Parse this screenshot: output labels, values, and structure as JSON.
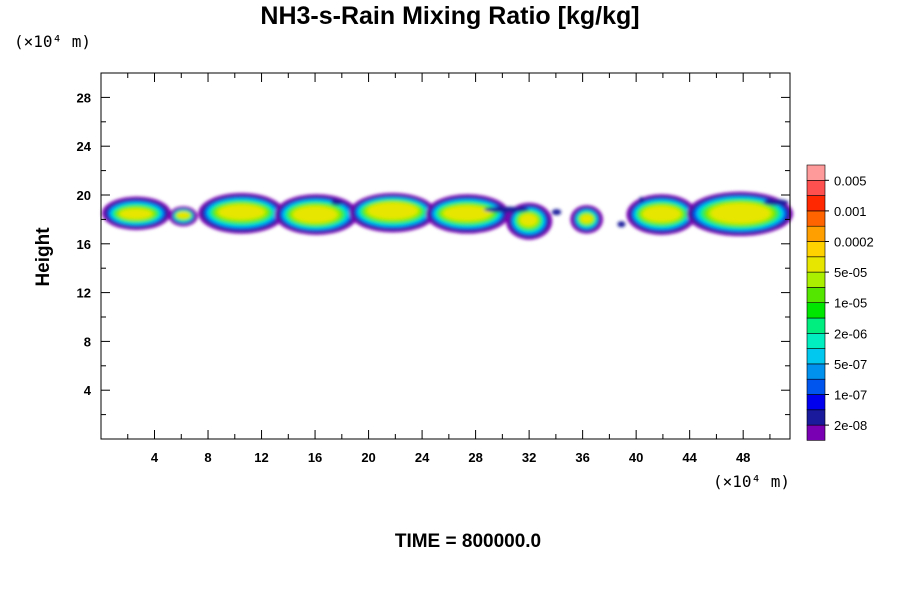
{
  "chart_data": {
    "type": "heatmap",
    "title": "NH3-s-Rain Mixing Ratio [kg/kg]",
    "ylabel": "Height",
    "xlabel": "",
    "x_unit": "(×10⁴ m)",
    "y_unit": "(×10⁴ m)",
    "xlim": [
      0,
      51.5
    ],
    "ylim": [
      0,
      30
    ],
    "x_ticks": [
      4,
      8,
      12,
      16,
      20,
      24,
      28,
      32,
      36,
      40,
      44,
      48
    ],
    "y_ticks": [
      4,
      8,
      12,
      16,
      20,
      24,
      28
    ],
    "footer": "TIME = 800000.0",
    "colorbar": {
      "colors": [
        "#7a00b4",
        "#1a1a9c",
        "#0000ee",
        "#0055ee",
        "#0090ee",
        "#00c8ee",
        "#00eec0",
        "#00ee80",
        "#00e600",
        "#55e600",
        "#aaee00",
        "#e6e600",
        "#ffd200",
        "#ffa000",
        "#ff6400",
        "#ff2800",
        "#ff5050",
        "#ff9a9a"
      ],
      "labels": [
        "2e-08",
        "1e-07",
        "5e-07",
        "2e-06",
        "1e-05",
        "5e-05",
        "0.0002",
        "0.001",
        "0.005"
      ]
    },
    "features": [
      {
        "x": [
          0.3,
          5.0
        ],
        "y_bottom": 17.3,
        "y_top": 19.7,
        "core": [
          1,
          4.2,
          17.9,
          19.0
        ]
      },
      {
        "x": [
          5.3,
          7.0
        ],
        "y_bottom": 17.6,
        "y_top": 18.9,
        "core": [
          5.5,
          6.8,
          18.0,
          18.7
        ]
      },
      {
        "x": [
          7.5,
          13.5
        ],
        "y_bottom": 17.0,
        "y_top": 20.0,
        "core": [
          8.2,
          12.8,
          17.8,
          19.4
        ]
      },
      {
        "x": [
          13.2,
          19.0
        ],
        "y_bottom": 16.9,
        "y_top": 19.9,
        "core": [
          13.8,
          18.2,
          17.5,
          19.3
        ]
      },
      {
        "x": [
          18.8,
          24.8
        ],
        "y_bottom": 17.1,
        "y_top": 20.0,
        "core": [
          19.3,
          24.3,
          17.8,
          19.6
        ]
      },
      {
        "x": [
          24.5,
          30.3
        ],
        "y_bottom": 17.0,
        "y_top": 19.9,
        "core": [
          25.0,
          29.7,
          17.7,
          19.3
        ]
      },
      {
        "x": [
          30.5,
          33.5
        ],
        "y_bottom": 16.5,
        "y_top": 19.2,
        "core": [
          31.1,
          32.8,
          17.3,
          18.6
        ]
      },
      {
        "x": [
          35.3,
          37.3
        ],
        "y_bottom": 17.0,
        "y_top": 19.0,
        "core": [
          35.7,
          36.9,
          17.6,
          18.5
        ]
      },
      {
        "x": [
          39.5,
          44.3
        ],
        "y_bottom": 16.9,
        "y_top": 19.9,
        "core": [
          40.0,
          43.8,
          17.6,
          19.3
        ]
      },
      {
        "x": [
          44.0,
          51.5
        ],
        "y_bottom": 16.8,
        "y_top": 20.1,
        "core": [
          44.8,
          50.8,
          17.4,
          19.6
        ]
      }
    ]
  }
}
